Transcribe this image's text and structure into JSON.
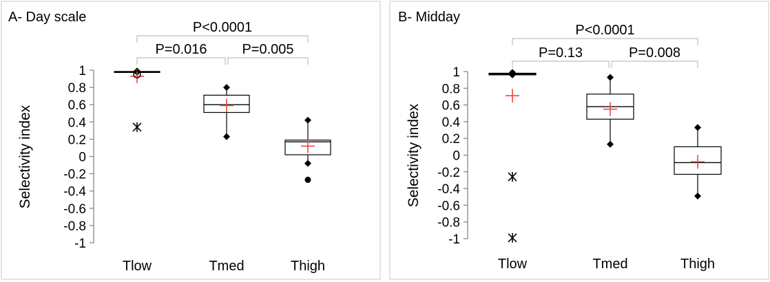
{
  "colors": {
    "mean": "#e8483f",
    "axis": "#7f7f7f",
    "box": "#000000",
    "bracket": "#bfbfbf"
  },
  "chart_data": [
    {
      "type": "box",
      "title": "A- Day scale",
      "ylabel": "Selectivity index",
      "ylim": [
        -1,
        1
      ],
      "ytick_labels": [
        "1",
        "0.8",
        "0.6",
        "0.4",
        "0.2",
        "0",
        "-0.2",
        "-0.4",
        "-0.6",
        "-0.8",
        "-1"
      ],
      "categories": [
        "Tlow",
        "Tmed",
        "Thigh"
      ],
      "boxes": [
        {
          "q1": 0.975,
          "median": 0.98,
          "q3": 0.985,
          "whisker_low": 0.975,
          "whisker_high": 0.99,
          "mean": 0.93,
          "outliers": [
            0.95
          ],
          "extremes": [
            0.34
          ]
        },
        {
          "q1": 0.51,
          "median": 0.6,
          "q3": 0.71,
          "whisker_low": 0.23,
          "whisker_high": 0.8,
          "mean": 0.59,
          "outliers": [],
          "extremes": []
        },
        {
          "q1": 0.02,
          "median": 0.17,
          "q3": 0.19,
          "whisker_low": -0.08,
          "whisker_high": 0.42,
          "mean": 0.12,
          "outliers": [
            -0.27
          ],
          "extremes": []
        }
      ],
      "comparisons": [
        {
          "from": 0,
          "to": 2,
          "label": "P<0.0001"
        },
        {
          "from": 0,
          "to": 1,
          "label": "P=0.016"
        },
        {
          "from": 1,
          "to": 2,
          "label": "P=0.005"
        }
      ]
    },
    {
      "type": "box",
      "title": "B- Midday",
      "ylabel": "Selectivity index",
      "ylim": [
        -1,
        1
      ],
      "ytick_labels": [
        "1",
        "0.8",
        "0.6",
        "0.4",
        "0.2",
        "0",
        "-0.2",
        "-0.4",
        "-0.6",
        "-0.8",
        "-1"
      ],
      "categories": [
        "Tlow",
        "Tmed",
        "Thigh"
      ],
      "boxes": [
        {
          "q1": 0.96,
          "median": 0.97,
          "q3": 0.98,
          "whisker_low": 0.96,
          "whisker_high": 0.99,
          "mean": 0.71,
          "outliers": [],
          "extremes": [
            -0.26,
            -0.99
          ]
        },
        {
          "q1": 0.43,
          "median": 0.58,
          "q3": 0.73,
          "whisker_low": 0.13,
          "whisker_high": 0.93,
          "mean": 0.55,
          "outliers": [],
          "extremes": []
        },
        {
          "q1": -0.23,
          "median": -0.09,
          "q3": 0.1,
          "whisker_low": -0.49,
          "whisker_high": 0.33,
          "mean": -0.08,
          "outliers": [],
          "extremes": []
        }
      ],
      "comparisons": [
        {
          "from": 0,
          "to": 2,
          "label": "P<0.0001"
        },
        {
          "from": 0,
          "to": 1,
          "label": "P=0.13"
        },
        {
          "from": 1,
          "to": 2,
          "label": "P=0.008"
        }
      ]
    }
  ]
}
